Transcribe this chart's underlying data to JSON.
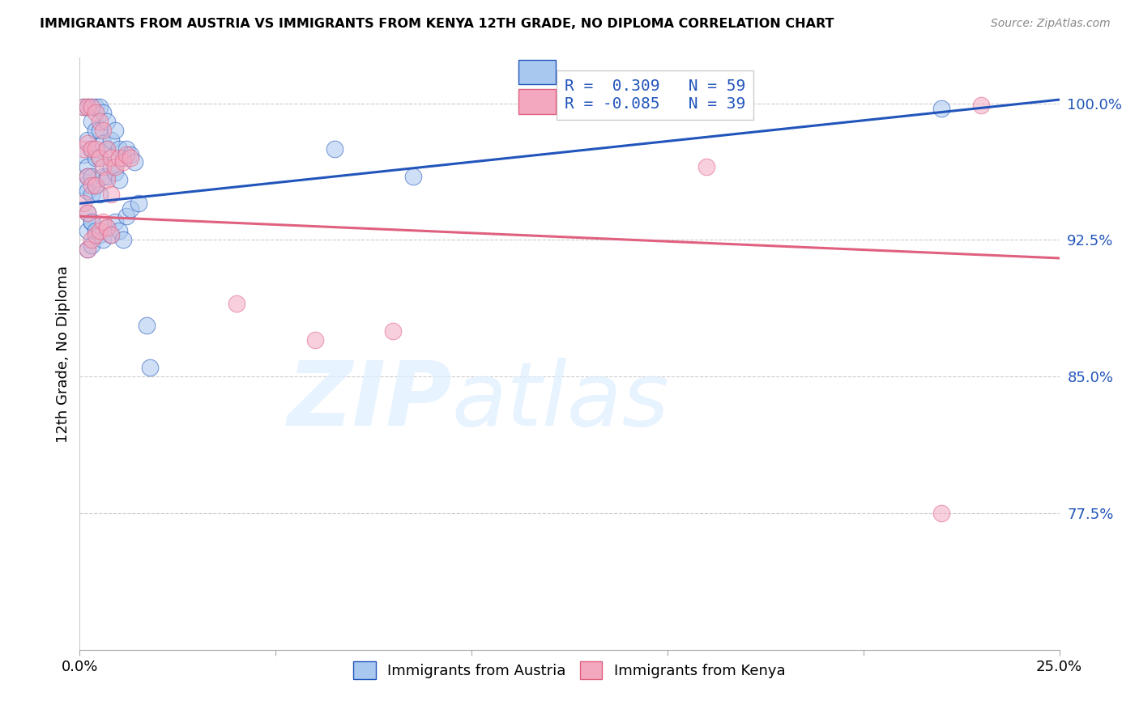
{
  "title": "IMMIGRANTS FROM AUSTRIA VS IMMIGRANTS FROM KENYA 12TH GRADE, NO DIPLOMA CORRELATION CHART",
  "source": "Source: ZipAtlas.com",
  "ylabel": "12th Grade, No Diploma",
  "ytick_labels": [
    "100.0%",
    "92.5%",
    "85.0%",
    "77.5%"
  ],
  "ytick_values": [
    1.0,
    0.925,
    0.85,
    0.775
  ],
  "xlim": [
    0.0,
    0.25
  ],
  "ylim": [
    0.7,
    1.025
  ],
  "austria_R": 0.309,
  "austria_N": 59,
  "kenya_R": -0.085,
  "kenya_N": 39,
  "austria_color": "#A8C8F0",
  "kenya_color": "#F4A8C0",
  "trendline_austria_color": "#2255BB",
  "trendline_kenya_color": "#E06080",
  "austria_scatter_x": [
    0.001,
    0.001,
    0.001,
    0.002,
    0.002,
    0.002,
    0.002,
    0.002,
    0.002,
    0.002,
    0.003,
    0.003,
    0.003,
    0.003,
    0.003,
    0.003,
    0.004,
    0.004,
    0.004,
    0.004,
    0.005,
    0.005,
    0.005,
    0.005,
    0.006,
    0.006,
    0.006,
    0.007,
    0.007,
    0.007,
    0.008,
    0.008,
    0.009,
    0.009,
    0.01,
    0.01,
    0.011,
    0.012,
    0.013,
    0.014,
    0.002,
    0.003,
    0.003,
    0.004,
    0.005,
    0.006,
    0.007,
    0.008,
    0.009,
    0.01,
    0.011,
    0.012,
    0.013,
    0.015,
    0.017,
    0.018,
    0.065,
    0.085,
    0.22
  ],
  "austria_scatter_y": [
    0.998,
    0.972,
    0.955,
    0.998,
    0.98,
    0.965,
    0.952,
    0.94,
    0.93,
    0.96,
    0.998,
    0.99,
    0.975,
    0.96,
    0.95,
    0.935,
    0.998,
    0.985,
    0.97,
    0.955,
    0.998,
    0.985,
    0.97,
    0.95,
    0.995,
    0.978,
    0.96,
    0.99,
    0.975,
    0.96,
    0.98,
    0.965,
    0.985,
    0.962,
    0.975,
    0.958,
    0.97,
    0.975,
    0.972,
    0.968,
    0.92,
    0.935,
    0.922,
    0.93,
    0.928,
    0.925,
    0.932,
    0.928,
    0.935,
    0.93,
    0.925,
    0.938,
    0.942,
    0.945,
    0.878,
    0.855,
    0.975,
    0.96,
    0.997
  ],
  "kenya_scatter_x": [
    0.001,
    0.001,
    0.001,
    0.002,
    0.002,
    0.002,
    0.002,
    0.003,
    0.003,
    0.003,
    0.004,
    0.004,
    0.004,
    0.005,
    0.005,
    0.006,
    0.006,
    0.007,
    0.007,
    0.008,
    0.008,
    0.009,
    0.01,
    0.011,
    0.012,
    0.013,
    0.002,
    0.003,
    0.004,
    0.005,
    0.006,
    0.007,
    0.008,
    0.04,
    0.06,
    0.08,
    0.16,
    0.22,
    0.23
  ],
  "kenya_scatter_y": [
    0.998,
    0.975,
    0.945,
    0.998,
    0.978,
    0.96,
    0.94,
    0.998,
    0.975,
    0.955,
    0.995,
    0.975,
    0.955,
    0.99,
    0.97,
    0.985,
    0.965,
    0.975,
    0.958,
    0.97,
    0.95,
    0.965,
    0.97,
    0.968,
    0.972,
    0.97,
    0.92,
    0.925,
    0.928,
    0.93,
    0.935,
    0.932,
    0.928,
    0.89,
    0.87,
    0.875,
    0.965,
    0.775,
    0.999
  ],
  "austria_trend_x0": 0.0,
  "austria_trend_x1": 0.25,
  "austria_trend_y0": 0.945,
  "austria_trend_y1": 1.002,
  "kenya_trend_x0": 0.0,
  "kenya_trend_x1": 0.25,
  "kenya_trend_y0": 0.938,
  "kenya_trend_y1": 0.915
}
